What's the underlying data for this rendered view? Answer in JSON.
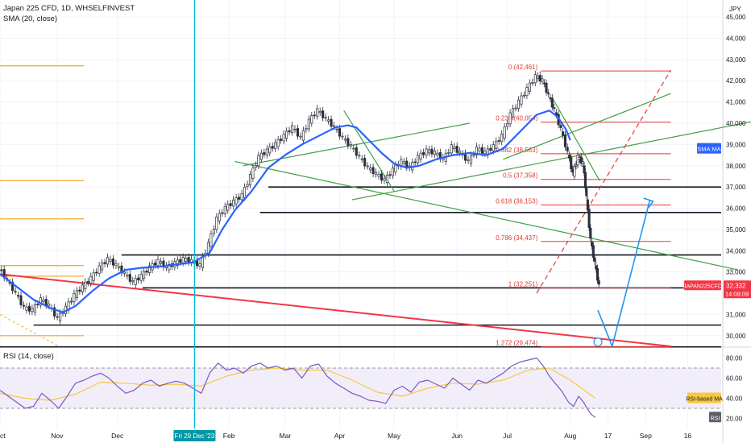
{
  "header": {
    "title": "Japan 225 CFD, 1D, WHSELFINVEST",
    "sma_label": "SMA (20, close)",
    "rsi_label": "RSI (14, close)",
    "currency": "JPY"
  },
  "colors": {
    "up": "#26a69a",
    "down": "#ef5350",
    "candle": "#2a2e39",
    "sma": "#2962ff",
    "fib": "#e53935",
    "trend": "#43a047",
    "support": "#131722",
    "orange": "#f5a623",
    "cursor": "#00bcd4",
    "rsi": "#7e57c2",
    "rsi_ma": "#f5c842"
  },
  "price_axis": {
    "min": 29500,
    "max": 45800,
    "ticks": [
      "45,000",
      "44,000",
      "43,000",
      "42,000",
      "41,000",
      "40,000",
      "39,000",
      "38,000",
      "37,000",
      "36,000",
      "35,000",
      "34,000",
      "33,000",
      "32,000",
      "31,000",
      "30,000"
    ],
    "tick_values": [
      45000,
      44000,
      43000,
      42000,
      41000,
      40000,
      39000,
      38000,
      37000,
      36000,
      35000,
      34000,
      33000,
      32000,
      31000,
      30000
    ]
  },
  "time_axis": {
    "labels": [
      "Oct",
      "Nov",
      "Dec",
      "Feb",
      "Mar",
      "Apr",
      "May",
      "Jun",
      "Jul",
      "Aug",
      "17",
      "Sep",
      "16"
    ],
    "label_days": [
      0,
      68,
      140,
      273,
      340,
      405,
      470,
      545,
      605,
      680,
      725,
      770,
      820
    ],
    "cursor_label": "Fri 29 Dec '23",
    "cursor_day": 232
  },
  "rsi_axis": {
    "ticks": [
      "80.00",
      "60.00",
      "40.00",
      "20.00"
    ],
    "tick_values": [
      80,
      60,
      40,
      20
    ],
    "upper": 70,
    "lower": 30,
    "badge_ma": "RSI-based MA",
    "badge_rsi": "RSI"
  },
  "price_badges": {
    "sma_badge": "SMA:MA",
    "symbol_badge": "JAPAN225CFD",
    "last_price": "32,332",
    "countdown": "14:08:09",
    "last_value": 32332
  },
  "fibonacci": [
    {
      "label": "0 (42,461)",
      "value": 42461
    },
    {
      "label": "0.236 (40,054)",
      "value": 40054
    },
    {
      "label": "0.382 (38,563)",
      "value": 38563
    },
    {
      "label": "0.5 (37,358)",
      "value": 37358
    },
    {
      "label": "0.618 (36,153)",
      "value": 36153
    },
    {
      "label": "0.786 (34,437)",
      "value": 34437
    },
    {
      "label": "1 (32,251)",
      "value": 32251
    },
    {
      "label": "1.272 (29,474)",
      "value": 29474
    }
  ],
  "chart_data": {
    "type": "line",
    "title": "Japan 225 CFD, 1D, WHSELFINVEST",
    "series": [
      {
        "name": "SMA (20, close)",
        "points": [
          [
            0,
            32900
          ],
          [
            20,
            32300
          ],
          [
            40,
            31700
          ],
          [
            60,
            31300
          ],
          [
            75,
            31100
          ],
          [
            90,
            31400
          ],
          [
            110,
            32100
          ],
          [
            130,
            32700
          ],
          [
            150,
            33100
          ],
          [
            170,
            33200
          ],
          [
            190,
            33250
          ],
          [
            210,
            33350
          ],
          [
            230,
            33450
          ],
          [
            250,
            33900
          ],
          [
            265,
            35000
          ],
          [
            280,
            35900
          ],
          [
            300,
            36800
          ],
          [
            320,
            37900
          ],
          [
            340,
            38500
          ],
          [
            360,
            39000
          ],
          [
            380,
            39400
          ],
          [
            400,
            39800
          ],
          [
            415,
            39900
          ],
          [
            425,
            39800
          ],
          [
            440,
            39200
          ],
          [
            455,
            38600
          ],
          [
            470,
            38100
          ],
          [
            485,
            37900
          ],
          [
            500,
            38000
          ],
          [
            520,
            38300
          ],
          [
            540,
            38500
          ],
          [
            560,
            38600
          ],
          [
            580,
            38500
          ],
          [
            600,
            38800
          ],
          [
            620,
            39600
          ],
          [
            640,
            40400
          ],
          [
            655,
            40600
          ],
          [
            665,
            40300
          ],
          [
            675,
            39700
          ],
          [
            680,
            39200
          ]
        ]
      },
      {
        "name": "Close",
        "points": [
          [
            0,
            33200
          ],
          [
            10,
            32600
          ],
          [
            20,
            32000
          ],
          [
            30,
            31300
          ],
          [
            40,
            31200
          ],
          [
            50,
            31700
          ],
          [
            60,
            31400
          ],
          [
            70,
            30800
          ],
          [
            80,
            31300
          ],
          [
            90,
            31900
          ],
          [
            100,
            32300
          ],
          [
            110,
            32700
          ],
          [
            120,
            33200
          ],
          [
            130,
            33600
          ],
          [
            140,
            33300
          ],
          [
            150,
            32900
          ],
          [
            160,
            32500
          ],
          [
            170,
            32800
          ],
          [
            180,
            33200
          ],
          [
            190,
            33500
          ],
          [
            200,
            33200
          ],
          [
            210,
            33400
          ],
          [
            220,
            33600
          ],
          [
            230,
            33500
          ],
          [
            240,
            33300
          ],
          [
            250,
            34300
          ],
          [
            260,
            35500
          ],
          [
            270,
            36000
          ],
          [
            280,
            36300
          ],
          [
            290,
            36600
          ],
          [
            300,
            37500
          ],
          [
            310,
            38400
          ],
          [
            320,
            38700
          ],
          [
            330,
            39000
          ],
          [
            340,
            39400
          ],
          [
            350,
            39800
          ],
          [
            360,
            39300
          ],
          [
            370,
            40100
          ],
          [
            380,
            40600
          ],
          [
            390,
            40200
          ],
          [
            400,
            39800
          ],
          [
            410,
            39300
          ],
          [
            420,
            38900
          ],
          [
            430,
            38400
          ],
          [
            440,
            37900
          ],
          [
            450,
            37600
          ],
          [
            460,
            37300
          ],
          [
            470,
            37800
          ],
          [
            480,
            38200
          ],
          [
            490,
            37900
          ],
          [
            500,
            38400
          ],
          [
            510,
            38700
          ],
          [
            520,
            38600
          ],
          [
            530,
            38300
          ],
          [
            540,
            38900
          ],
          [
            550,
            38600
          ],
          [
            560,
            38200
          ],
          [
            570,
            38800
          ],
          [
            580,
            38600
          ],
          [
            590,
            38900
          ],
          [
            600,
            39400
          ],
          [
            610,
            40400
          ],
          [
            620,
            41000
          ],
          [
            630,
            41600
          ],
          [
            640,
            42200
          ],
          [
            648,
            42000
          ],
          [
            655,
            41300
          ],
          [
            662,
            40600
          ],
          [
            670,
            39700
          ],
          [
            678,
            38600
          ],
          [
            684,
            37600
          ],
          [
            690,
            38400
          ],
          [
            696,
            38100
          ],
          [
            700,
            36500
          ],
          [
            705,
            34500
          ],
          [
            710,
            33400
          ],
          [
            715,
            32332
          ]
        ]
      },
      {
        "name": "RSI (14, close)",
        "points": [
          [
            0,
            48
          ],
          [
            10,
            42
          ],
          [
            20,
            36
          ],
          [
            30,
            30
          ],
          [
            40,
            32
          ],
          [
            50,
            45
          ],
          [
            60,
            38
          ],
          [
            70,
            30
          ],
          [
            80,
            42
          ],
          [
            90,
            55
          ],
          [
            100,
            58
          ],
          [
            110,
            62
          ],
          [
            120,
            65
          ],
          [
            130,
            60
          ],
          [
            140,
            52
          ],
          [
            150,
            45
          ],
          [
            160,
            48
          ],
          [
            170,
            55
          ],
          [
            180,
            58
          ],
          [
            190,
            52
          ],
          [
            200,
            55
          ],
          [
            210,
            57
          ],
          [
            220,
            55
          ],
          [
            230,
            50
          ],
          [
            240,
            45
          ],
          [
            250,
            65
          ],
          [
            260,
            75
          ],
          [
            270,
            68
          ],
          [
            280,
            70
          ],
          [
            290,
            65
          ],
          [
            300,
            72
          ],
          [
            310,
            75
          ],
          [
            320,
            70
          ],
          [
            330,
            72
          ],
          [
            340,
            68
          ],
          [
            350,
            70
          ],
          [
            360,
            60
          ],
          [
            370,
            72
          ],
          [
            380,
            74
          ],
          [
            390,
            62
          ],
          [
            400,
            55
          ],
          [
            410,
            50
          ],
          [
            420,
            45
          ],
          [
            430,
            42
          ],
          [
            440,
            38
          ],
          [
            450,
            37
          ],
          [
            460,
            35
          ],
          [
            470,
            48
          ],
          [
            480,
            52
          ],
          [
            490,
            46
          ],
          [
            500,
            56
          ],
          [
            510,
            58
          ],
          [
            520,
            54
          ],
          [
            530,
            50
          ],
          [
            540,
            60
          ],
          [
            550,
            54
          ],
          [
            560,
            48
          ],
          [
            570,
            58
          ],
          [
            580,
            55
          ],
          [
            590,
            60
          ],
          [
            600,
            65
          ],
          [
            610,
            72
          ],
          [
            620,
            76
          ],
          [
            630,
            78
          ],
          [
            640,
            80
          ],
          [
            648,
            72
          ],
          [
            655,
            62
          ],
          [
            662,
            55
          ],
          [
            670,
            47
          ],
          [
            678,
            36
          ],
          [
            684,
            32
          ],
          [
            690,
            42
          ],
          [
            696,
            36
          ],
          [
            700,
            30
          ],
          [
            705,
            24
          ],
          [
            710,
            21
          ]
        ]
      },
      {
        "name": "RSI-based MA",
        "points": [
          [
            0,
            45
          ],
          [
            30,
            40
          ],
          [
            60,
            38
          ],
          [
            90,
            44
          ],
          [
            120,
            56
          ],
          [
            150,
            55
          ],
          [
            180,
            53
          ],
          [
            210,
            54
          ],
          [
            240,
            52
          ],
          [
            270,
            62
          ],
          [
            300,
            68
          ],
          [
            330,
            70
          ],
          [
            360,
            68
          ],
          [
            390,
            68
          ],
          [
            420,
            58
          ],
          [
            450,
            46
          ],
          [
            480,
            42
          ],
          [
            510,
            50
          ],
          [
            540,
            55
          ],
          [
            570,
            54
          ],
          [
            600,
            58
          ],
          [
            630,
            68
          ],
          [
            655,
            70
          ],
          [
            680,
            58
          ],
          [
            700,
            46
          ],
          [
            710,
            40
          ]
        ]
      }
    ],
    "drawings": {
      "support_lines": [
        37000,
        35800,
        33800,
        32251,
        30500,
        29474
      ],
      "orange_levels": [
        42700,
        37300,
        35500,
        33300,
        32800,
        30000
      ],
      "red_trendline": {
        "from": [
          0,
          32900
        ],
        "to": [
          800,
          29500
        ]
      },
      "green_channel_upper": {
        "from": [
          600,
          38300
        ],
        "to": [
          800,
          41400
        ]
      },
      "green_channel_lower": {
        "from": [
          420,
          36400
        ],
        "to": [
          900,
          40100
        ]
      },
      "green_down_line": {
        "from": [
          280,
          38200
        ],
        "to": [
          880,
          33100
        ]
      },
      "projection": [
        [
          713,
          31200
        ],
        [
          730,
          29500
        ],
        [
          775,
          36400
        ]
      ]
    }
  }
}
